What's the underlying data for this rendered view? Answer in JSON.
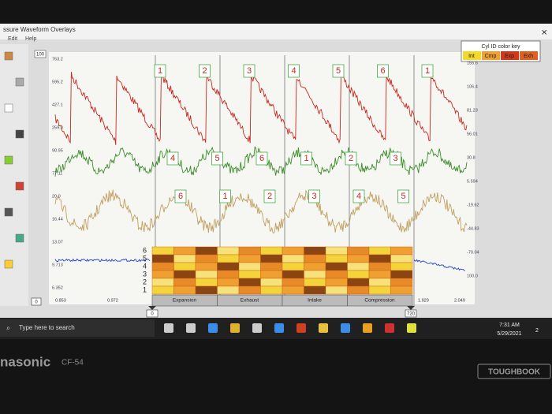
{
  "window": {
    "title": "ssure Waveform Overlays",
    "menu": [
      "Edit",
      "Help"
    ],
    "toolbar_value": "100"
  },
  "color_key": {
    "title": "Cyl ID color key",
    "items": [
      "Int",
      "Cmp",
      "Exp",
      "Exh"
    ]
  },
  "chart": {
    "left_labels": [
      "763.2",
      "595.2",
      "427.1",
      "259.0",
      "90.95",
      "77.11",
      "20.0",
      "16.44",
      "13.07",
      "9.713",
      "6.352"
    ],
    "right_labels": [
      "155.6",
      "106.4",
      "81.23",
      "56.01",
      "30.8",
      "5.594",
      "-19.62",
      "-44.83",
      "-70.04",
      "100.0"
    ],
    "x_labels": [
      "0.853",
      "0.972",
      "1.929",
      "2.049"
    ],
    "cylinder_rows": [
      [
        "1",
        "2",
        "3",
        "4",
        "5",
        "6",
        "1"
      ],
      [
        "4",
        "5",
        "6",
        "1",
        "2",
        "3"
      ],
      [
        "6",
        "1",
        "2",
        "3",
        "4",
        "5"
      ]
    ],
    "grid_rows": [
      "6",
      "5",
      "4",
      "3",
      "2",
      "1"
    ],
    "strokes": [
      "Expansion",
      "Exhaust",
      "Intake",
      "Compression"
    ],
    "markers": [
      "0",
      "720"
    ],
    "corner": "0"
  },
  "taskbar": {
    "search": "Type here to search",
    "time": "7:31 AM",
    "date": "5/29/2021",
    "badge": "2"
  },
  "laptop": {
    "brand": "nasonic",
    "model": "CF-54",
    "badge": "TOUGHBOOK"
  }
}
